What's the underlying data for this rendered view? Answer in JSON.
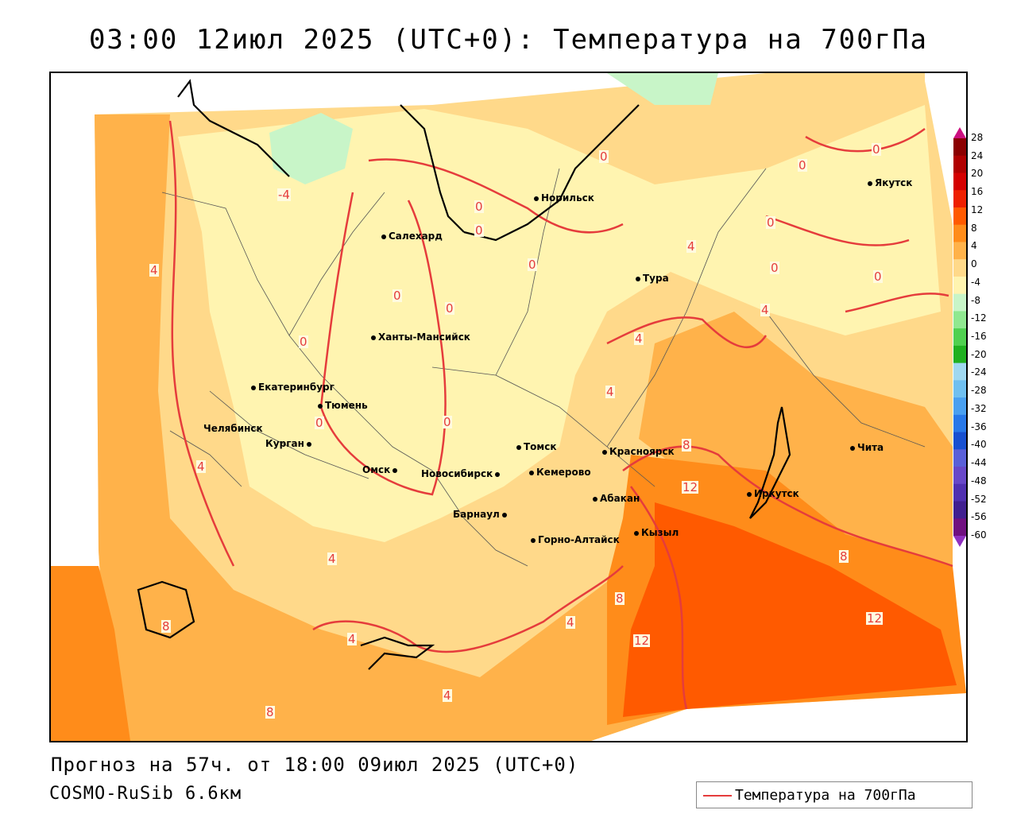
{
  "title": "03:00 12июл 2025 (UTC+0): Температура на 700гПа",
  "footer": {
    "forecast": "Прогноз на 57ч. от 18:00 09июл 2025 (UTC+0)",
    "model": "COSMO-RuSib 6.6км"
  },
  "legend": {
    "label": "Температура на 700гПа",
    "line_color": "#e53c3c"
  },
  "colorbar": {
    "ticks": [
      "28",
      "24",
      "20",
      "16",
      "12",
      "8",
      "4",
      "0",
      "-4",
      "-8",
      "-12",
      "-16",
      "-20",
      "-24",
      "-28",
      "-32",
      "-36",
      "-40",
      "-44",
      "-48",
      "-52",
      "-56",
      "-60"
    ],
    "colors": [
      "#8b0000",
      "#b00000",
      "#d40000",
      "#ee2000",
      "#ff5a00",
      "#ff8c1a",
      "#ffb24a",
      "#ffd98a",
      "#fff4b0",
      "#c8f5c8",
      "#90e890",
      "#50d050",
      "#20b020",
      "#a0d8f0",
      "#70c0f0",
      "#4aa0f0",
      "#2878e8",
      "#1850d0",
      "#5a60d8",
      "#6848c8",
      "#5030b0",
      "#402090",
      "#701080"
    ]
  },
  "contour_labels": [
    {
      "text": "0"
    },
    {
      "text": "0"
    },
    {
      "text": "0"
    },
    {
      "text": "-4"
    },
    {
      "text": "0"
    },
    {
      "text": "0"
    },
    {
      "text": "0"
    },
    {
      "text": "0"
    },
    {
      "text": "4"
    },
    {
      "text": "0"
    },
    {
      "text": "0"
    },
    {
      "text": "0"
    },
    {
      "text": "4"
    },
    {
      "text": "4"
    },
    {
      "text": "4"
    },
    {
      "text": "0"
    },
    {
      "text": "0"
    },
    {
      "text": "4"
    },
    {
      "text": "8"
    },
    {
      "text": "12"
    },
    {
      "text": "4"
    },
    {
      "text": "4"
    },
    {
      "text": "4"
    },
    {
      "text": "8"
    },
    {
      "text": "12"
    },
    {
      "text": "8"
    },
    {
      "text": "4"
    },
    {
      "text": "4"
    },
    {
      "text": "8"
    },
    {
      "text": "8"
    },
    {
      "text": "12"
    },
    {
      "text": "0"
    },
    {
      "text": "0"
    }
  ],
  "cities": [
    {
      "name": "Норильск"
    },
    {
      "name": "Салехард"
    },
    {
      "name": "Якутск"
    },
    {
      "name": "Тура"
    },
    {
      "name": "Ханты-Мансийск"
    },
    {
      "name": "Екатеринбург"
    },
    {
      "name": "Тюмень"
    },
    {
      "name": "Челябинск"
    },
    {
      "name": "Курган"
    },
    {
      "name": "Омск"
    },
    {
      "name": "Томск"
    },
    {
      "name": "Новосибирск"
    },
    {
      "name": "Кемерово"
    },
    {
      "name": "Красноярск"
    },
    {
      "name": "Барнаул"
    },
    {
      "name": "Абакан"
    },
    {
      "name": "Горно-Алтайск"
    },
    {
      "name": "Кызыл"
    },
    {
      "name": "Иркутск"
    },
    {
      "name": "Чита"
    }
  ]
}
